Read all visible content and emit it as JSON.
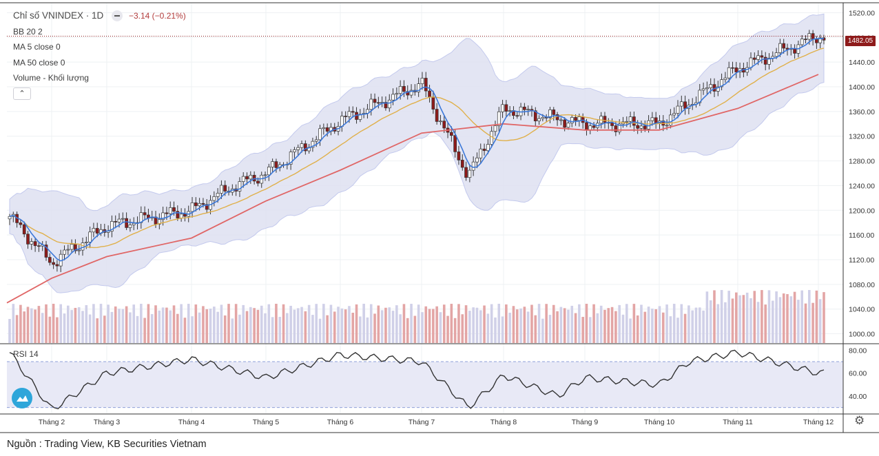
{
  "legend": {
    "title": "Chỉ số VNINDEX · 1D",
    "change": "−3.14 (−0.21%)",
    "bb": "BB 20 2",
    "ma5": "MA 5 close 0",
    "ma50": "MA 50 close 0",
    "volume": "Volume - Khối lượng",
    "collapse_icon": "chevron-up-icon"
  },
  "rsi_label": "RSI 14",
  "last_price_tag": "1482.05",
  "source": "Nguồn : Trading View, KB Securities Vietnam",
  "colors": {
    "up_candle": "#ffffff",
    "down_candle": "#8e1b1b",
    "ma5": "#3c78d8",
    "ma20": "#e0b04a",
    "ma50": "#e06666",
    "band_fill": "#dfe1f2",
    "vol_up": "#d0d0e8",
    "vol_down": "#e3a5a5",
    "rsi_line": "#333333"
  },
  "icons": {
    "logo": "tradingview-cloud-icon",
    "settings": "gear-icon"
  },
  "chart_data": [
    {
      "type": "candlestick",
      "title": "Chỉ số VNINDEX",
      "ylim": [
        985,
        1535
      ],
      "y_ticks": [
        "1520.00",
        "1480.00",
        "1440.00",
        "1400.00",
        "1360.00",
        "1320.00",
        "1280.00",
        "1240.00",
        "1200.00",
        "1160.00",
        "1120.00",
        "1080.00",
        "1040.00",
        "1000.00"
      ],
      "x_ticks": [
        "Tháng 2",
        "Tháng 3",
        "Tháng 4",
        "Tháng 5",
        "Tháng 6",
        "Tháng 7",
        "Tháng 8",
        "Tháng 9",
        "Tháng 10",
        "Tháng 11",
        "Tháng 12"
      ],
      "last_close": 1482.05,
      "close_path": [
        {
          "month": "Tháng 1 (late)",
          "close": 1190
        },
        {
          "month": "Tháng 2",
          "low": 1050,
          "close": 1115
        },
        {
          "month": "Tháng 3",
          "close": 1175
        },
        {
          "month": "Tháng 4",
          "close": 1200
        },
        {
          "month": "Tháng 4 (late)",
          "close": 1240
        },
        {
          "month": "Tháng 5",
          "close": 1260
        },
        {
          "month": "Tháng 6",
          "close": 1345
        },
        {
          "month": "Tháng 7",
          "high": 1420,
          "close": 1405
        },
        {
          "month": "Tháng 7 (late)",
          "low": 1230,
          "close": 1255
        },
        {
          "month": "Tháng 8",
          "close": 1365
        },
        {
          "month": "Tháng 9",
          "close": 1340
        },
        {
          "month": "Tháng 10",
          "close": 1340
        },
        {
          "month": "Tháng 11",
          "close": 1430
        },
        {
          "month": "Tháng 12",
          "high": 1510,
          "close": 1482
        }
      ],
      "ma50_path": [
        {
          "month": "Tháng 2",
          "value": 1090
        },
        {
          "month": "Tháng 3",
          "value": 1125
        },
        {
          "month": "Tháng 4",
          "value": 1155
        },
        {
          "month": "Tháng 5",
          "value": 1215
        },
        {
          "month": "Tháng 6",
          "value": 1265
        },
        {
          "month": "Tháng 7",
          "value": 1325
        },
        {
          "month": "Tháng 8",
          "value": 1340
        },
        {
          "month": "Tháng 9",
          "value": 1330
        },
        {
          "month": "Tháng 10",
          "value": 1330
        },
        {
          "month": "Tháng 11",
          "value": 1365
        },
        {
          "month": "Tháng 12",
          "value": 1420
        }
      ]
    },
    {
      "type": "line",
      "title": "RSI 14",
      "ylim": [
        25,
        85
      ],
      "y_ticks": [
        "80.00",
        "60.00",
        "40.00"
      ],
      "bands": [
        70,
        30
      ],
      "path": [
        {
          "month": "Tháng 1 (late)",
          "value": 78
        },
        {
          "month": "Tháng 2",
          "value": 28
        },
        {
          "month": "Tháng 3",
          "value": 60
        },
        {
          "month": "Tháng 4",
          "value": 72
        },
        {
          "month": "Tháng 5",
          "value": 56
        },
        {
          "month": "Tháng 6",
          "value": 76
        },
        {
          "month": "Tháng 7",
          "value": 70
        },
        {
          "month": "Tháng 7 (late)",
          "value": 30
        },
        {
          "month": "Tháng 8",
          "value": 58
        },
        {
          "month": "Tháng 8 (late)",
          "value": 40
        },
        {
          "month": "Tháng 9",
          "value": 56
        },
        {
          "month": "Tháng 10",
          "value": 50
        },
        {
          "month": "Tháng 10 (late)",
          "value": 70
        },
        {
          "month": "Tháng 11",
          "value": 78
        },
        {
          "month": "Tháng 12",
          "value": 60
        }
      ]
    }
  ]
}
